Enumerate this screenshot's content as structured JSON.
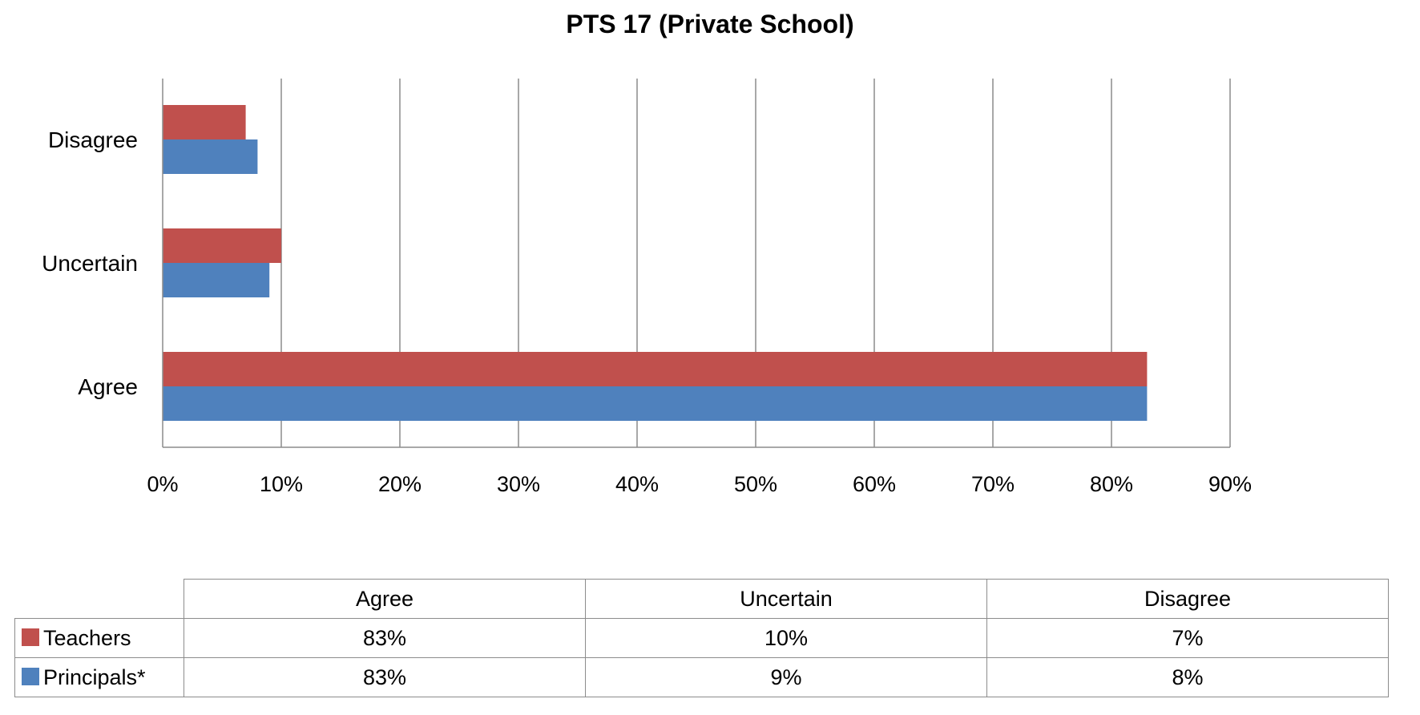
{
  "chart_data": {
    "type": "bar",
    "orientation": "horizontal",
    "title": "PTS 17 (Private School)",
    "categories": [
      "Agree",
      "Uncertain",
      "Disagree"
    ],
    "series": [
      {
        "name": "Teachers",
        "color": "#c0504d",
        "values": [
          83,
          10,
          7
        ],
        "labels": [
          "83%",
          "10%",
          "7%"
        ]
      },
      {
        "name": "Principals*",
        "color": "#4f81bd",
        "values": [
          83,
          9,
          8
        ],
        "labels": [
          "83%",
          "9%",
          "8%"
        ]
      }
    ],
    "xlim": [
      0,
      90
    ],
    "xticks": [
      0,
      10,
      20,
      30,
      40,
      50,
      60,
      70,
      80,
      90
    ],
    "xtick_labels": [
      "0%",
      "10%",
      "20%",
      "30%",
      "40%",
      "50%",
      "60%",
      "70%",
      "80%",
      "90%"
    ],
    "grid": true,
    "legend": "data-table-below",
    "table": {
      "columns": [
        "Agree",
        "Uncertain",
        "Disagree"
      ]
    }
  }
}
